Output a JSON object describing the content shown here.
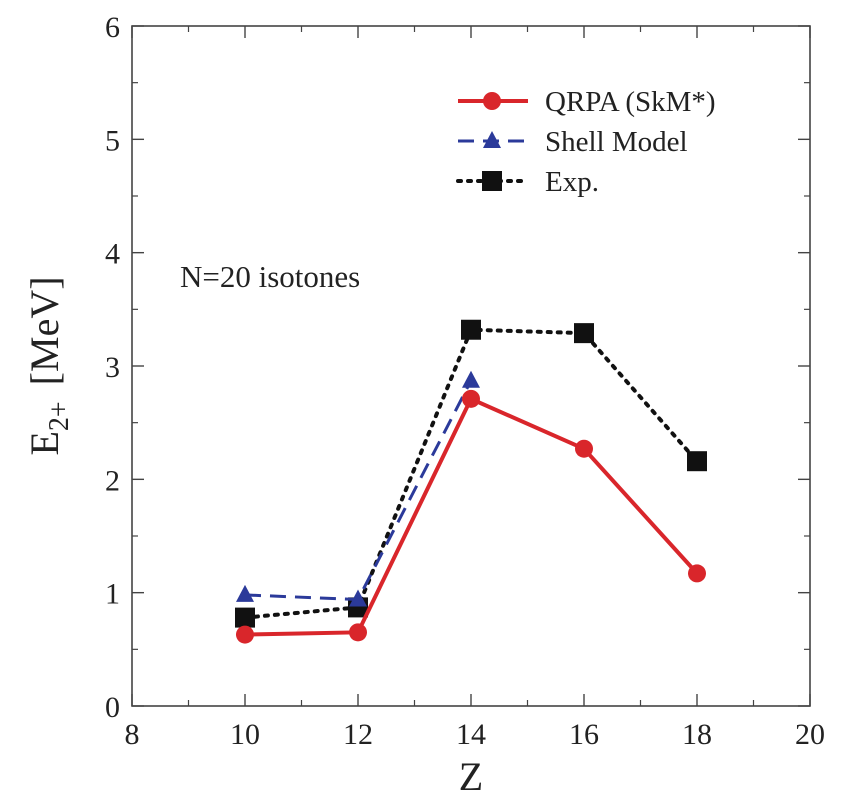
{
  "chart_data": {
    "type": "line",
    "xlabel": "Z",
    "ylabel_main": "E",
    "ylabel_sub": "2+",
    "ylabel_unit": "[MeV]",
    "annotation": "N=20 isotones",
    "xlim": [
      8,
      20
    ],
    "ylim": [
      0,
      6
    ],
    "x_ticks": [
      8,
      10,
      12,
      14,
      16,
      18,
      20
    ],
    "x_tick_labels": [
      "8",
      "10",
      "12",
      "14",
      "16",
      "18",
      "20"
    ],
    "y_ticks": [
      0,
      1,
      2,
      3,
      4,
      5,
      6
    ],
    "y_tick_labels": [
      "0",
      "1",
      "2",
      "3",
      "4",
      "5",
      "6"
    ],
    "legend_position": "top-right",
    "series": [
      {
        "name": "QRPA (SkM*)",
        "color": "#d9262b",
        "line": "solid",
        "marker": "circle",
        "x": [
          10,
          12,
          14,
          16,
          18
        ],
        "y": [
          0.63,
          0.65,
          2.71,
          2.27,
          1.17
        ]
      },
      {
        "name": "Shell Model",
        "color": "#2b3a9a",
        "line": "dashed",
        "marker": "triangle",
        "x": [
          10,
          12,
          14
        ],
        "y": [
          0.98,
          0.94,
          2.87
        ]
      },
      {
        "name": "Exp.",
        "color": "#111111",
        "line": "dotted",
        "marker": "square",
        "x": [
          10,
          12,
          14,
          16,
          18
        ],
        "y": [
          0.78,
          0.87,
          3.32,
          3.29,
          2.16
        ]
      }
    ]
  }
}
